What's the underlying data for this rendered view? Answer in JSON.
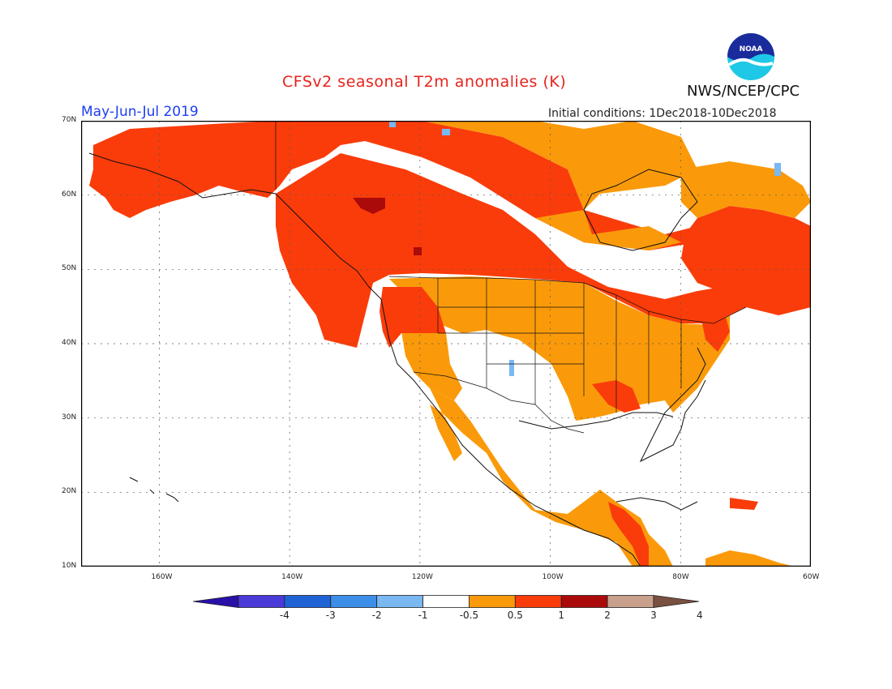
{
  "header": {
    "title": "CFSv2 seasonal T2m anomalies (K)",
    "period": "May-Jun-Jul 2019",
    "initial_conditions": "Initial conditions: 1Dec2018-10Dec2018",
    "agency": "NWS/NCEP/CPC",
    "logo_text": "NOAA"
  },
  "map": {
    "lon_range": [
      -172,
      -60
    ],
    "lat_range": [
      10,
      70
    ],
    "lat_labels": [
      "70N",
      "60N",
      "50N",
      "40N",
      "30N",
      "20N",
      "10N"
    ],
    "lon_labels": [
      "160W",
      "140W",
      "120W",
      "100W",
      "80W",
      "60W"
    ],
    "gridlines": true
  },
  "colorbar": {
    "labels": [
      "-4",
      "-3",
      "-2",
      "-1",
      "-0.5",
      "0.5",
      "1",
      "2",
      "3",
      "4"
    ],
    "colors": [
      "#2a10a8",
      "#4a3ad8",
      "#1f63d6",
      "#3d8ee8",
      "#7ab8f2",
      "#ffffff",
      "#fa9a0a",
      "#fa3c0a",
      "#aa0a0a",
      "#c8a08c",
      "#7a5040"
    ]
  }
}
